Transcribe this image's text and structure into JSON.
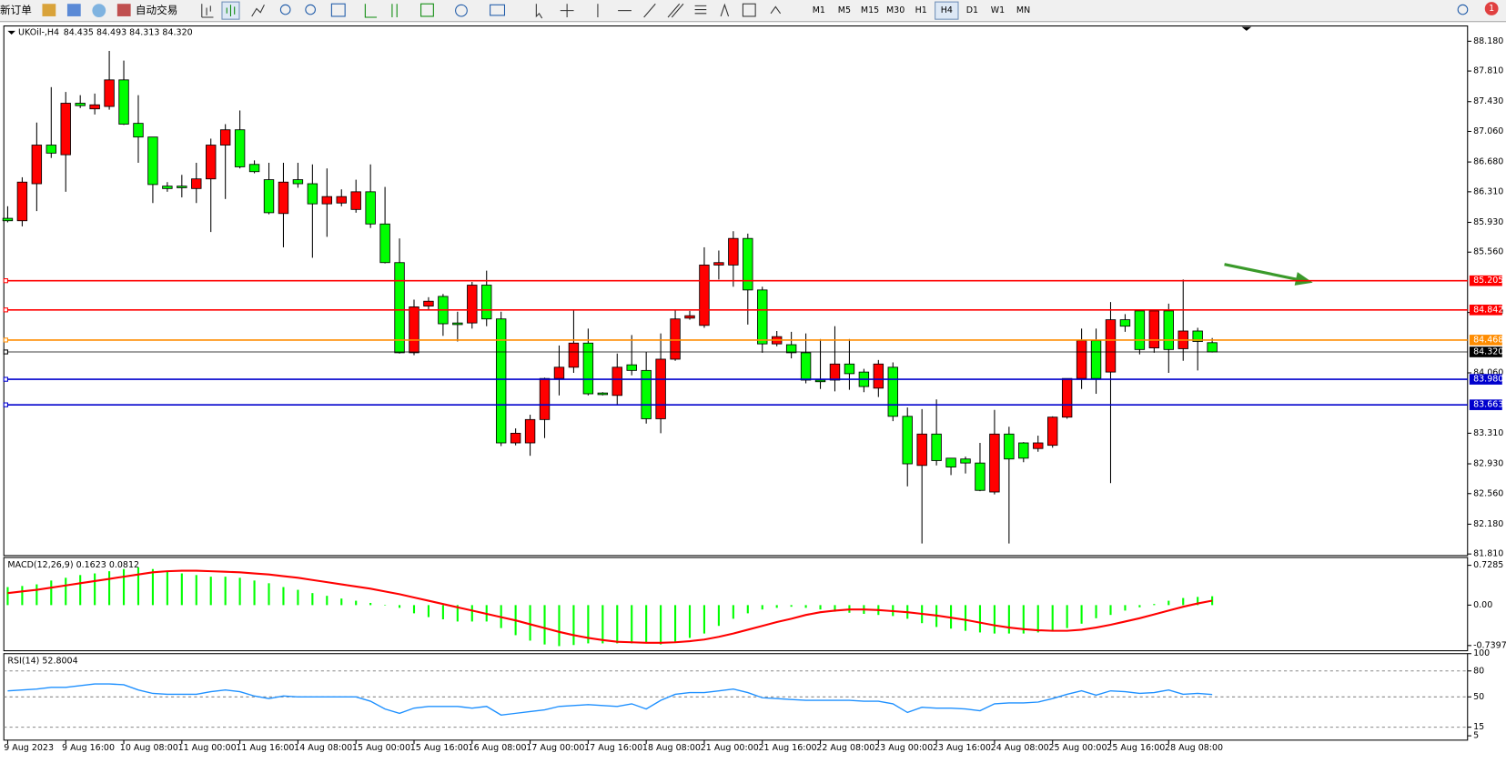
{
  "toolbar": {
    "new_order": "新订单",
    "auto_trading": "自动交易",
    "timeframes": [
      "M1",
      "M5",
      "M15",
      "M30",
      "H1",
      "H4",
      "D1",
      "W1",
      "MN"
    ],
    "notifications": "1"
  },
  "chart_data": [
    {
      "type": "candlestick",
      "title": "UKOil-,H4",
      "header_values": "84.435 84.493 84.313 84.320",
      "categories": [
        "9 Aug 2023",
        null,
        null,
        null,
        "9 Aug 16:00",
        null,
        null,
        null,
        "10 Aug 08:00",
        null,
        null,
        null,
        "11 Aug 00:00",
        null,
        null,
        null,
        "11 Aug 16:00",
        null,
        null,
        null,
        "14 Aug 08:00",
        null,
        null,
        null,
        "15 Aug 00:00",
        null,
        null,
        null,
        "15 Aug 16:00",
        null,
        null,
        null,
        "16 Aug 08:00",
        null,
        null,
        null,
        "17 Aug 00:00",
        null,
        null,
        null,
        "17 Aug 16:00",
        null,
        null,
        null,
        "18 Aug 08:00",
        null,
        null,
        null,
        "21 Aug 00:00",
        null,
        null,
        null,
        "21 Aug 16:00",
        null,
        null,
        null,
        "22 Aug 08:00",
        null,
        null,
        null,
        "23 Aug 00:00",
        null,
        null,
        null,
        "23 Aug 16:00",
        null,
        null,
        null,
        "24 Aug 08:00",
        null,
        null,
        null,
        "25 Aug 00:00",
        null,
        null,
        null,
        "25 Aug 16:00",
        null,
        null,
        null,
        "28 Aug 08:00",
        null,
        null,
        null
      ],
      "open": [
        85.98,
        85.95,
        86.41,
        86.89,
        86.77,
        87.41,
        87.34,
        87.37,
        87.7,
        87.16,
        86.99,
        86.38,
        86.38,
        86.35,
        86.47,
        86.89,
        87.08,
        86.65,
        86.46,
        86.04,
        86.46,
        86.41,
        86.16,
        86.17,
        86.09,
        86.31,
        85.91,
        85.43,
        84.31,
        84.89,
        85.01,
        84.68,
        84.68,
        85.15,
        84.73,
        83.19,
        83.19,
        83.48,
        83.99,
        84.13,
        84.43,
        83.81,
        83.78,
        84.16,
        84.09,
        83.49,
        84.23,
        84.74,
        84.65,
        85.4,
        85.4,
        85.73,
        85.09,
        84.42,
        84.41,
        84.31,
        83.97,
        83.97,
        84.17,
        84.07,
        83.87,
        84.13,
        83.52,
        82.91,
        83.3,
        83.0,
        82.99,
        82.94,
        82.58,
        83.3,
        83.19,
        83.12,
        83.16,
        83.51,
        83.99,
        84.46,
        84.07,
        84.72,
        84.83,
        84.37,
        84.83,
        84.36,
        84.58,
        84.435
      ],
      "high": [
        86.13,
        86.49,
        87.17,
        87.61,
        87.55,
        87.51,
        87.53,
        88.06,
        87.94,
        87.51,
        86.99,
        86.43,
        86.52,
        86.67,
        86.97,
        87.15,
        87.32,
        86.7,
        86.67,
        86.67,
        86.67,
        86.65,
        86.6,
        86.34,
        86.46,
        86.65,
        86.37,
        85.73,
        84.97,
        85.0,
        85.04,
        84.82,
        85.19,
        85.33,
        84.82,
        83.37,
        83.54,
        84.0,
        84.4,
        84.85,
        84.61,
        83.82,
        84.3,
        84.53,
        84.32,
        84.55,
        84.85,
        84.83,
        85.62,
        85.58,
        85.82,
        85.79,
        85.13,
        84.58,
        84.57,
        84.55,
        84.48,
        84.64,
        84.48,
        84.11,
        84.22,
        84.19,
        83.63,
        83.61,
        83.73,
        83.0,
        83.02,
        83.19,
        83.6,
        83.39,
        83.2,
        83.28,
        83.52,
        83.99,
        84.61,
        84.61,
        84.94,
        84.79,
        84.85,
        84.84,
        84.92,
        85.22,
        84.62,
        84.493
      ],
      "low": [
        85.93,
        85.88,
        86.07,
        86.73,
        86.31,
        87.35,
        87.27,
        87.33,
        87.14,
        86.67,
        86.17,
        86.31,
        86.24,
        86.17,
        85.81,
        86.22,
        86.6,
        86.54,
        86.03,
        85.62,
        86.36,
        85.49,
        85.75,
        86.13,
        86.05,
        85.86,
        85.42,
        84.3,
        84.28,
        84.85,
        84.52,
        84.45,
        84.61,
        84.64,
        83.15,
        83.16,
        83.03,
        83.25,
        83.78,
        84.06,
        83.78,
        83.78,
        83.67,
        84.03,
        83.43,
        83.31,
        84.21,
        84.72,
        84.62,
        85.22,
        85.13,
        84.66,
        84.31,
        84.39,
        84.24,
        83.93,
        83.86,
        83.83,
        83.85,
        83.82,
        83.76,
        83.46,
        82.65,
        81.94,
        82.91,
        82.79,
        82.81,
        82.59,
        82.55,
        81.94,
        82.95,
        83.08,
        83.13,
        83.49,
        83.86,
        83.8,
        82.69,
        84.57,
        84.29,
        84.31,
        84.06,
        84.21,
        84.09,
        84.313
      ],
      "close": [
        85.95,
        86.43,
        86.89,
        86.79,
        87.41,
        87.38,
        87.39,
        87.7,
        87.15,
        86.99,
        86.4,
        86.35,
        86.36,
        86.47,
        86.89,
        87.08,
        86.62,
        86.56,
        86.05,
        86.43,
        86.41,
        86.16,
        86.25,
        86.25,
        86.31,
        85.91,
        85.43,
        84.31,
        84.88,
        84.95,
        84.67,
        84.66,
        85.15,
        84.73,
        83.19,
        83.31,
        83.48,
        83.99,
        84.13,
        84.43,
        83.8,
        83.79,
        84.13,
        84.09,
        83.49,
        84.23,
        84.73,
        84.77,
        85.4,
        85.43,
        85.73,
        85.09,
        84.42,
        84.51,
        84.31,
        83.97,
        83.95,
        84.17,
        84.05,
        83.89,
        84.17,
        83.52,
        82.93,
        83.3,
        82.97,
        82.89,
        82.94,
        82.6,
        83.3,
        82.99,
        83.0,
        83.19,
        83.51,
        83.99,
        84.46,
        83.99,
        84.72,
        84.64,
        84.35,
        84.83,
        84.35,
        84.58,
        84.45,
        84.32
      ],
      "up_color": "#ff0000",
      "down_color": "#00ff00",
      "ylim": [
        81.79,
        88.37
      ],
      "yticks": [
        {
          "value": 88.18,
          "label": "88.180"
        },
        {
          "value": 87.81,
          "label": "87.810"
        },
        {
          "value": 87.43,
          "label": "87.430"
        },
        {
          "value": 87.06,
          "label": "87.060"
        },
        {
          "value": 86.68,
          "label": "86.680"
        },
        {
          "value": 86.31,
          "label": "86.310"
        },
        {
          "value": 85.93,
          "label": "85.930"
        },
        {
          "value": 85.56,
          "label": "85.560"
        },
        {
          "value": 84.81,
          "label": "84.810"
        },
        {
          "value": 84.06,
          "label": "84.060"
        },
        {
          "value": 83.31,
          "label": "83.310"
        },
        {
          "value": 82.93,
          "label": "82.930"
        },
        {
          "value": 82.56,
          "label": "82.560"
        },
        {
          "value": 82.18,
          "label": "82.180"
        },
        {
          "value": 81.81,
          "label": "81.810"
        }
      ],
      "levels": [
        {
          "value": 85.205,
          "label": "85.205",
          "color": "#ff0000"
        },
        {
          "value": 84.842,
          "label": "84.842",
          "color": "#ff0000"
        },
        {
          "value": 84.468,
          "label": "84.468",
          "color": "#ff8c00"
        },
        {
          "value": 84.32,
          "label": "84.320",
          "color": "#000000"
        },
        {
          "value": 83.98,
          "label": "83.980",
          "color": "#0000cd"
        },
        {
          "value": 83.663,
          "label": "83.663",
          "color": "#0000cd"
        }
      ]
    },
    {
      "type": "macd",
      "title": "MACD(12,26,9) 0.1623 0.0812",
      "histogram": [
        0.33,
        0.35,
        0.38,
        0.45,
        0.5,
        0.55,
        0.58,
        0.62,
        0.66,
        0.69,
        0.66,
        0.62,
        0.58,
        0.55,
        0.52,
        0.52,
        0.5,
        0.45,
        0.4,
        0.33,
        0.28,
        0.22,
        0.17,
        0.12,
        0.08,
        0.04,
        0.0,
        -0.05,
        -0.15,
        -0.22,
        -0.26,
        -0.3,
        -0.3,
        -0.3,
        -0.42,
        -0.55,
        -0.65,
        -0.72,
        -0.75,
        -0.73,
        -0.7,
        -0.7,
        -0.7,
        -0.7,
        -0.7,
        -0.72,
        -0.68,
        -0.6,
        -0.52,
        -0.38,
        -0.25,
        -0.15,
        -0.08,
        -0.05,
        -0.03,
        -0.05,
        -0.08,
        -0.12,
        -0.14,
        -0.16,
        -0.18,
        -0.2,
        -0.25,
        -0.33,
        -0.4,
        -0.43,
        -0.47,
        -0.5,
        -0.52,
        -0.52,
        -0.52,
        -0.5,
        -0.48,
        -0.42,
        -0.34,
        -0.24,
        -0.18,
        -0.1,
        -0.04,
        0.02,
        0.08,
        0.13,
        0.15,
        0.1623
      ],
      "signal": [
        0.22,
        0.25,
        0.28,
        0.32,
        0.36,
        0.4,
        0.44,
        0.48,
        0.52,
        0.56,
        0.6,
        0.62,
        0.63,
        0.63,
        0.62,
        0.61,
        0.6,
        0.58,
        0.56,
        0.53,
        0.5,
        0.46,
        0.42,
        0.38,
        0.34,
        0.3,
        0.25,
        0.2,
        0.14,
        0.08,
        0.02,
        -0.04,
        -0.1,
        -0.16,
        -0.22,
        -0.28,
        -0.35,
        -0.42,
        -0.49,
        -0.55,
        -0.6,
        -0.64,
        -0.67,
        -0.68,
        -0.69,
        -0.69,
        -0.68,
        -0.66,
        -0.63,
        -0.58,
        -0.52,
        -0.45,
        -0.38,
        -0.31,
        -0.25,
        -0.18,
        -0.13,
        -0.1,
        -0.08,
        -0.08,
        -0.09,
        -0.11,
        -0.13,
        -0.16,
        -0.19,
        -0.23,
        -0.27,
        -0.32,
        -0.37,
        -0.41,
        -0.44,
        -0.46,
        -0.47,
        -0.47,
        -0.45,
        -0.41,
        -0.36,
        -0.3,
        -0.24,
        -0.17,
        -0.1,
        -0.03,
        0.03,
        0.0812
      ],
      "histogram_color": "#00ff00",
      "signal_color": "#ff0000",
      "ylim": [
        -0.835,
        0.871
      ],
      "yticks": [
        {
          "value": 0.7285,
          "label": "0.7285"
        },
        {
          "value": 0,
          "label": "0.00"
        },
        {
          "value": -0.7397,
          "label": "-0.7397"
        }
      ]
    },
    {
      "type": "rsi",
      "title": "RSI(14) 52.8004",
      "values": [
        57,
        58,
        59,
        61,
        61,
        63,
        65,
        65,
        64,
        58,
        54,
        53,
        53,
        53,
        56,
        58,
        56,
        51,
        48,
        51,
        50,
        50,
        50,
        50,
        50,
        45,
        36,
        31,
        37,
        39,
        39,
        39,
        37,
        39,
        29,
        31,
        33,
        35,
        39,
        40,
        41,
        40,
        39,
        42,
        36,
        46,
        53,
        55,
        55,
        57,
        59,
        55,
        49,
        48,
        47,
        46,
        46,
        46,
        46,
        45,
        45,
        42,
        32,
        38,
        37,
        37,
        36,
        34,
        42,
        43,
        43,
        44,
        48,
        53,
        57,
        52,
        57,
        56,
        54,
        55,
        58,
        53,
        54,
        52.8004
      ],
      "color": "#1e90ff",
      "ylim": [
        0,
        100
      ],
      "yticks": [
        100,
        80,
        50,
        15,
        5
      ],
      "levels": [
        80,
        50,
        15
      ]
    }
  ]
}
